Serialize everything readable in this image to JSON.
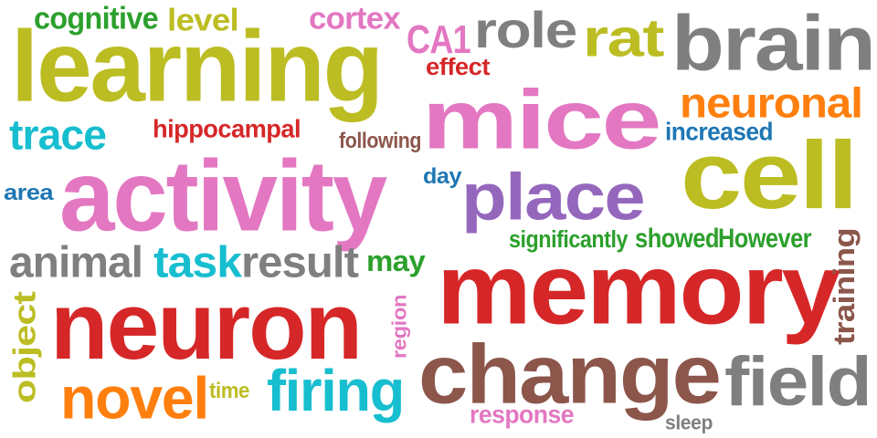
{
  "colors": {
    "olive": "#bcbd22",
    "pink": "#e377c2",
    "gray": "#7f7f7f",
    "red": "#d62728",
    "cyan": "#17becf",
    "green": "#2ca02c",
    "orange": "#ff7f0e",
    "purple": "#9467bd",
    "brown": "#8c564b",
    "blue": "#1f77b4"
  },
  "words": [
    {
      "text": "learning",
      "color": "olive"
    },
    {
      "text": "activity",
      "color": "pink"
    },
    {
      "text": "neuron",
      "color": "red"
    },
    {
      "text": "memory",
      "color": "red"
    },
    {
      "text": "mice",
      "color": "pink"
    },
    {
      "text": "brain",
      "color": "gray"
    },
    {
      "text": "cell",
      "color": "olive"
    },
    {
      "text": "change",
      "color": "brown"
    },
    {
      "text": "place",
      "color": "purple"
    },
    {
      "text": "field",
      "color": "gray"
    },
    {
      "text": "novel",
      "color": "orange"
    },
    {
      "text": "firing",
      "color": "cyan"
    },
    {
      "text": "rat",
      "color": "olive"
    },
    {
      "text": "role",
      "color": "gray"
    },
    {
      "text": "neuronal",
      "color": "orange"
    },
    {
      "text": "animal",
      "color": "gray"
    },
    {
      "text": "task",
      "color": "cyan"
    },
    {
      "text": "result",
      "color": "gray"
    },
    {
      "text": "object",
      "color": "olive"
    },
    {
      "text": "trace",
      "color": "cyan"
    },
    {
      "text": "CA1",
      "color": "pink"
    },
    {
      "text": "cortex",
      "color": "pink"
    },
    {
      "text": "cognitive",
      "color": "green"
    },
    {
      "text": "level",
      "color": "olive"
    },
    {
      "text": "hippocampal",
      "color": "red"
    },
    {
      "text": "training",
      "color": "brown"
    },
    {
      "text": "may",
      "color": "green"
    },
    {
      "text": "showed",
      "color": "green"
    },
    {
      "text": "However",
      "color": "green"
    },
    {
      "text": "effect",
      "color": "red"
    },
    {
      "text": "increased",
      "color": "blue"
    },
    {
      "text": "response",
      "color": "pink"
    },
    {
      "text": "significantly",
      "color": "green"
    },
    {
      "text": "following",
      "color": "brown"
    },
    {
      "text": "area",
      "color": "blue"
    },
    {
      "text": "day",
      "color": "blue"
    },
    {
      "text": "time",
      "color": "olive"
    },
    {
      "text": "sleep",
      "color": "gray"
    },
    {
      "text": "region",
      "color": "pink"
    }
  ]
}
